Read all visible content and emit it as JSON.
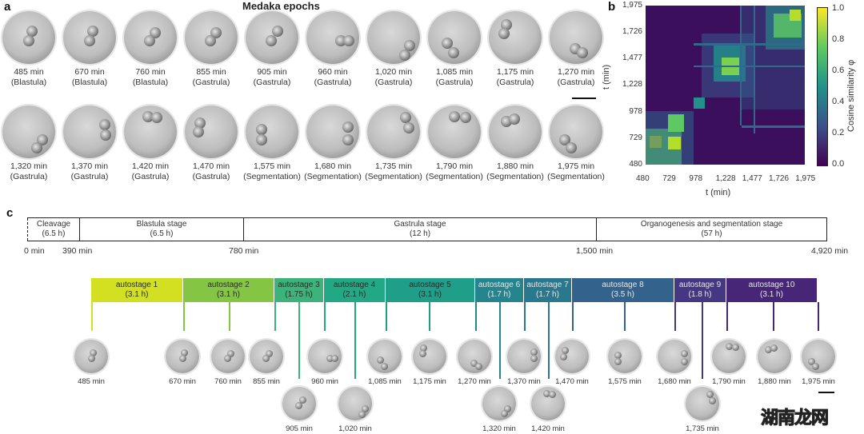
{
  "panel_a": {
    "letter": "a",
    "title": "Medaka epochs",
    "row1": [
      {
        "time": "485 min",
        "stage": "(Blastula)"
      },
      {
        "time": "670 min",
        "stage": "(Blastula)"
      },
      {
        "time": "760 min",
        "stage": "(Blastula)"
      },
      {
        "time": "855 min",
        "stage": "(Gastrula)"
      },
      {
        "time": "905 min",
        "stage": "(Gastrula)"
      },
      {
        "time": "960 min",
        "stage": "(Gastrula)"
      },
      {
        "time": "1,020 min",
        "stage": "(Gastrula)"
      },
      {
        "time": "1,085 min",
        "stage": "(Gastrula)"
      },
      {
        "time": "1,175 min",
        "stage": "(Gastrula)"
      },
      {
        "time": "1,270 min",
        "stage": "(Gastrula)"
      }
    ],
    "row2": [
      {
        "time": "1,320 min",
        "stage": "(Gastrula)"
      },
      {
        "time": "1,370 min",
        "stage": "(Gastrula)"
      },
      {
        "time": "1,420 min",
        "stage": "(Gastrula)"
      },
      {
        "time": "1,470 min",
        "stage": "(Gastrula)"
      },
      {
        "time": "1,575 min",
        "stage": "(Segmentation)"
      },
      {
        "time": "1,680 min",
        "stage": "(Segmentation)"
      },
      {
        "time": "1,735 min",
        "stage": "(Segmentation)"
      },
      {
        "time": "1,790 min",
        "stage": "(Segmentation)"
      },
      {
        "time": "1,880 min",
        "stage": "(Segmentation)"
      },
      {
        "time": "1,975 min",
        "stage": "(Segmentation)"
      }
    ]
  },
  "panel_b": {
    "letter": "b"
  },
  "chart_data": {
    "type": "heatmap",
    "title": "",
    "xlabel": "t (min)",
    "ylabel": "t (min)",
    "x_ticks": [
      "480",
      "729",
      "978",
      "1,228",
      "1,477",
      "1,726",
      "1,975"
    ],
    "y_ticks": [
      "480",
      "729",
      "978",
      "1,228",
      "1,477",
      "1,726",
      "1,975"
    ],
    "xlim": [
      480,
      1975
    ],
    "ylim": [
      480,
      1975
    ],
    "colorbar": {
      "label": "Cosine similarity φ",
      "ticks": [
        "0.0",
        "0.2",
        "0.4",
        "0.6",
        "0.8",
        "1.0"
      ],
      "range": [
        0.0,
        1.0
      ],
      "colormap": "viridis"
    },
    "high_similarity_blocks": [
      {
        "range": [
          480,
          640
        ],
        "value": 0.95
      },
      {
        "range": [
          690,
          780
        ],
        "value": 0.9
      },
      {
        "range": [
          880,
          930
        ],
        "value": 0.7
      },
      {
        "range": [
          1000,
          1280
        ],
        "value": 0.85
      },
      {
        "range": [
          1380,
          1420
        ],
        "value": 0.7
      },
      {
        "range": [
          1450,
          1500
        ],
        "value": 0.6
      },
      {
        "range": [
          1560,
          1975
        ],
        "value": 0.9
      }
    ]
  },
  "panel_c": {
    "letter": "c",
    "stages": [
      {
        "name": "Cleavage",
        "duration": "(6.5 h)"
      },
      {
        "name": "Blastula stage",
        "duration": "(6.5 h)"
      },
      {
        "name": "Gastrula stage",
        "duration": "(12 h)"
      },
      {
        "name": "Organogenesis and segmentation stage",
        "duration": "(57 h)"
      }
    ],
    "axis_labels": [
      "0 min",
      "390 min",
      "780 min",
      "1,500 min",
      "4,920 min"
    ],
    "autostages": [
      {
        "name": "autostage 1",
        "duration": "(3.1 h)",
        "color": "#d2e021"
      },
      {
        "name": "autostage 2",
        "duration": "(3.1 h)",
        "color": "#84c644"
      },
      {
        "name": "autostage 3",
        "duration": "(1.75 h)",
        "color": "#3bb37a"
      },
      {
        "name": "autostage 4",
        "duration": "(2.1 h)",
        "color": "#22a884"
      },
      {
        "name": "autostage 5",
        "duration": "(3.1 h)",
        "color": "#1f9e89"
      },
      {
        "name": "autostage 6",
        "duration": "(1.7 h)",
        "color": "#25858e"
      },
      {
        "name": "autostage 7",
        "duration": "(1.7 h)",
        "color": "#2a788e"
      },
      {
        "name": "autostage 8",
        "duration": "(3.5 h)",
        "color": "#33638d"
      },
      {
        "name": "autostage 9",
        "duration": "(1.8 h)",
        "color": "#453781"
      },
      {
        "name": "autostage 10",
        "duration": "(3.1 h)",
        "color": "#482677"
      }
    ],
    "upper_images": [
      "485 min",
      "670 min",
      "760 min",
      "855 min",
      "960 min",
      "1,085 min",
      "1,175 min",
      "1,270 min",
      "1,370 min",
      "1,470 min",
      "1,575 min",
      "1,680 min",
      "1,790 min",
      "1,880 min",
      "1,975 min"
    ],
    "lower_images": [
      "905 min",
      "1,020 min",
      "1,320 min",
      "1,420 min",
      "1,735 min"
    ]
  },
  "watermark": {
    "part1": "湖南",
    "part2": "龙网"
  }
}
